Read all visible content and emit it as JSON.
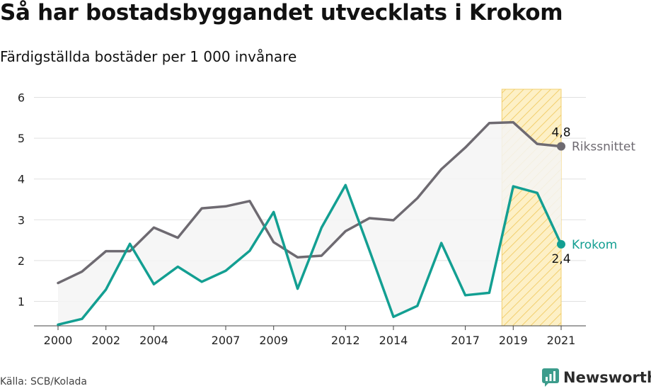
{
  "header": {
    "title": "Så har bostadsbyggandet utvecklats i Krokom",
    "subtitle": "Färdigställda bostäder per 1 000 invånare"
  },
  "footer": {
    "source": "Källa: SCB/Kolada",
    "brand": "Newsworthy"
  },
  "colors": {
    "riks": "#6e6a71",
    "krokom": "#139f92",
    "highlight_fill": "#fdf0c6",
    "highlight_stroke": "#f2cf6e",
    "band_fill": "#f5f5f5",
    "grid": "#e0e0e0"
  },
  "chart_data": {
    "type": "line",
    "x": [
      2000,
      2001,
      2002,
      2003,
      2004,
      2005,
      2006,
      2007,
      2008,
      2009,
      2010,
      2011,
      2012,
      2013,
      2014,
      2015,
      2016,
      2017,
      2018,
      2019,
      2020,
      2021
    ],
    "series": [
      {
        "name": "Rikssnittet",
        "values": [
          1.45,
          1.73,
          2.23,
          2.23,
          2.81,
          2.56,
          3.28,
          3.33,
          3.46,
          2.45,
          2.08,
          2.12,
          2.72,
          3.04,
          2.99,
          3.53,
          4.24,
          4.77,
          5.37,
          5.39,
          4.86,
          4.8
        ],
        "end_label": "4,8"
      },
      {
        "name": "Krokom",
        "values": [
          0.43,
          0.57,
          1.29,
          2.41,
          1.42,
          1.85,
          1.48,
          1.75,
          2.24,
          3.19,
          1.31,
          2.81,
          3.85,
          2.25,
          0.62,
          0.89,
          2.43,
          1.15,
          1.21,
          3.82,
          3.66,
          2.4
        ],
        "end_label": "2,4"
      }
    ],
    "x_tick_labels": [
      "2000",
      "2002",
      "2004",
      "2007",
      "2009",
      "2012",
      "2014",
      "2017",
      "2019",
      "2021"
    ],
    "y_ticks": [
      1,
      2,
      3,
      4,
      5,
      6
    ],
    "ylim": [
      0.4,
      6.2
    ],
    "xlim": [
      2000,
      2021
    ],
    "highlight_range": [
      2019,
      2021
    ],
    "grid": "horizontal",
    "legend": "inline at line ends"
  }
}
